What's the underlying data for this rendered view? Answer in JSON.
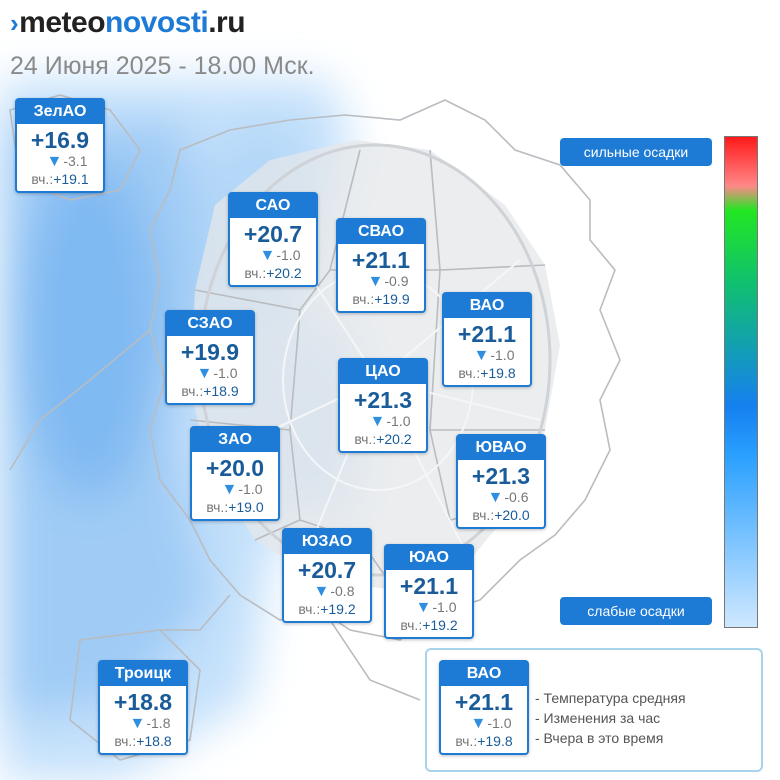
{
  "header": {
    "logo": {
      "meteo": "meteo",
      "novosti": "novosti",
      "domain": ".ru"
    },
    "date": "24 Июня 2025 - 18.00 Мск."
  },
  "districts": [
    {
      "name": "ЗелАО",
      "temp": "+16.9",
      "change": "-3.1",
      "yesterday_label": "вч.:",
      "yesterday": "+19.1"
    },
    {
      "name": "САО",
      "temp": "+20.7",
      "change": "-1.0",
      "yesterday_label": "вч.:",
      "yesterday": "+20.2"
    },
    {
      "name": "СВАО",
      "temp": "+21.1",
      "change": "-0.9",
      "yesterday_label": "вч.:",
      "yesterday": "+19.9"
    },
    {
      "name": "ВАО",
      "temp": "+21.1",
      "change": "-1.0",
      "yesterday_label": "вч.:",
      "yesterday": "+19.8"
    },
    {
      "name": "СЗАО",
      "temp": "+19.9",
      "change": "-1.0",
      "yesterday_label": "вч.:",
      "yesterday": "+18.9"
    },
    {
      "name": "ЦАО",
      "temp": "+21.3",
      "change": "-1.0",
      "yesterday_label": "вч.:",
      "yesterday": "+20.2"
    },
    {
      "name": "ЗАО",
      "temp": "+20.0",
      "change": "-1.0",
      "yesterday_label": "вч.:",
      "yesterday": "+19.0"
    },
    {
      "name": "ЮВАО",
      "temp": "+21.3",
      "change": "-0.6",
      "yesterday_label": "вч.:",
      "yesterday": "+20.0"
    },
    {
      "name": "ЮЗАО",
      "temp": "+20.7",
      "change": "-0.8",
      "yesterday_label": "вч.:",
      "yesterday": "+19.2"
    },
    {
      "name": "ЮАО",
      "temp": "+21.1",
      "change": "-1.0",
      "yesterday_label": "вч.:",
      "yesterday": "+19.2"
    },
    {
      "name": "Троицк",
      "temp": "+18.8",
      "change": "-1.8",
      "yesterday_label": "вч.:",
      "yesterday": "+18.8"
    }
  ],
  "precip_scale": {
    "top_label": "сильные осадки",
    "bottom_label": "слабые осадки",
    "colors": [
      "#ff1a1a",
      "#22e622",
      "#1580f0",
      "#cfe8ff"
    ]
  },
  "legend": {
    "sample": {
      "name": "ВАО",
      "temp": "+21.1",
      "change": "-1.0",
      "yesterday_label": "вч.:",
      "yesterday": "+19.8"
    },
    "lines": [
      "- Температура средняя",
      "- Изменения за час",
      "- Вчера в это время"
    ]
  },
  "colors": {
    "accent": "#1d7bd6",
    "temp_text": "#1a5c99",
    "rain_light": "#cfe6fb"
  },
  "icons": {
    "change": "triangle-down-icon"
  }
}
